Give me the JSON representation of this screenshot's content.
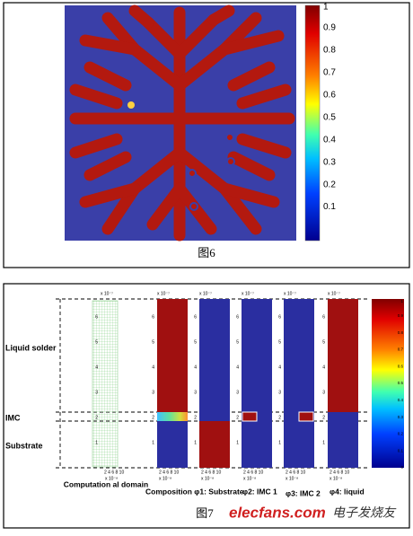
{
  "figure6": {
    "caption": "图6",
    "colorbar_ticks": [
      1,
      0.9,
      0.8,
      0.7,
      0.6,
      0.5,
      0.4,
      0.3,
      0.2,
      0.1
    ]
  },
  "figure7": {
    "caption": "图7",
    "region_labels": [
      "Liquid solder",
      "IMC",
      "Substrate"
    ],
    "domain_label": "Computation al domain",
    "panel_labels": [
      "Composition φ1: Substrate",
      "φ2: IMC 1",
      "φ3: IMC 2",
      "φ4: liquid"
    ],
    "y_exponent": "x 10⁻⁷",
    "x_exponent": "x 10⁻⁸",
    "y_ticks": [
      1,
      2,
      3,
      4,
      5,
      6
    ],
    "x_ticks": "2 4 6 8 10",
    "colorbar_ticks": [
      1,
      0.9,
      0.8,
      0.7,
      0.6,
      0.5,
      0.4,
      0.3,
      0.2,
      0.1,
      0
    ]
  },
  "watermark": {
    "brand": "elecfans.com",
    "cn": "电子发烧友"
  }
}
